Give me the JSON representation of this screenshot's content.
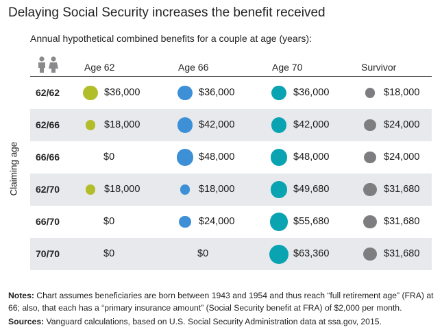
{
  "title": "Delaying Social Security increases the benefit received",
  "chart_data": {
    "type": "table",
    "title": "Delaying Social Security increases the benefit received",
    "subtitle": "Annual hypothetical combined benefits for a couple at age (years):",
    "ylabel": "Claiming age",
    "columns": [
      "Age 62",
      "Age 66",
      "Age 70",
      "Survivor"
    ],
    "column_colors": [
      "#b2bd2a",
      "#3d90d6",
      "#0aa3b2",
      "#7e7e80"
    ],
    "rows": [
      {
        "label": "62/62",
        "values": [
          36000,
          36000,
          36000,
          18000
        ],
        "labels": [
          "$36,000",
          "$36,000",
          "$36,000",
          "$18,000"
        ]
      },
      {
        "label": "62/66",
        "values": [
          18000,
          42000,
          42000,
          24000
        ],
        "labels": [
          "$18,000",
          "$42,000",
          "$42,000",
          "$24,000"
        ]
      },
      {
        "label": "66/66",
        "values": [
          0,
          48000,
          48000,
          24000
        ],
        "labels": [
          "$0",
          "$48,000",
          "$48,000",
          "$24,000"
        ]
      },
      {
        "label": "62/70",
        "values": [
          18000,
          18000,
          49680,
          31680
        ],
        "labels": [
          "$18,000",
          "$18,000",
          "$49,680",
          "$31,680"
        ]
      },
      {
        "label": "66/70",
        "values": [
          0,
          24000,
          55680,
          31680
        ],
        "labels": [
          "$0",
          "$24,000",
          "$55,680",
          "$31,680"
        ]
      },
      {
        "label": "70/70",
        "values": [
          0,
          0,
          63360,
          31680
        ],
        "labels": [
          "$0",
          "$0",
          "$63,360",
          "$31,680"
        ]
      }
    ]
  },
  "notes": {
    "label": "Notes:",
    "text": " Chart assumes beneficiaries are born between 1943 and 1954 and thus reach “full retirement age” (FRA) at 66; also, that each has a “primary insurance amount” (Social Security benefit at FRA) of $2,000 per month."
  },
  "sources": {
    "label": "Sources:",
    "text": " Vanguard calculations, based on U.S. Social Security Administration data at ssa.gov, 2015."
  }
}
